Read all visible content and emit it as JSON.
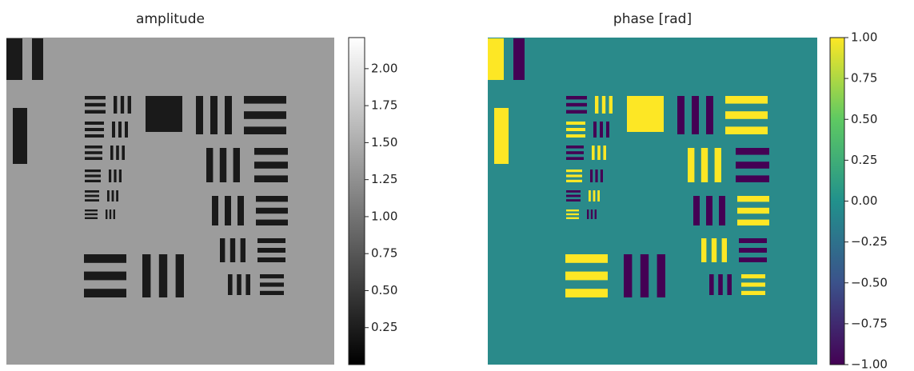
{
  "chart_data": [
    {
      "type": "image",
      "title": "amplitude",
      "colormap": [
        "#000000",
        "#ffffff"
      ],
      "clim": [
        0,
        2.21
      ],
      "cticks": [
        {
          "value": 0.25,
          "label": "0.25"
        },
        {
          "value": 0.5,
          "label": "0.50"
        },
        {
          "value": 0.75,
          "label": "0.75"
        },
        {
          "value": 1,
          "label": "1.00"
        },
        {
          "value": 1.25,
          "label": "1.25"
        },
        {
          "value": 1.5,
          "label": "1.50"
        },
        {
          "value": 1.75,
          "label": "1.75"
        },
        {
          "value": 2,
          "label": "2.00"
        }
      ]
    },
    {
      "type": "image",
      "title": "phase [rad]",
      "colormap": [
        "#440154",
        "#3b528b",
        "#21918c",
        "#5ec962",
        "#fde725"
      ],
      "clim": [
        -1,
        1
      ],
      "cticks": [
        {
          "value": -1,
          "label": "−1.00"
        },
        {
          "value": -0.75,
          "label": "−0.75"
        },
        {
          "value": -0.5,
          "label": "−0.50"
        },
        {
          "value": -0.25,
          "label": "−0.25"
        },
        {
          "value": 0,
          "label": "0.00"
        },
        {
          "value": 0.25,
          "label": "0.25"
        },
        {
          "value": 0.5,
          "label": "0.50"
        },
        {
          "value": 0.75,
          "label": "0.75"
        },
        {
          "value": 1,
          "label": "1.00"
        }
      ]
    }
  ]
}
